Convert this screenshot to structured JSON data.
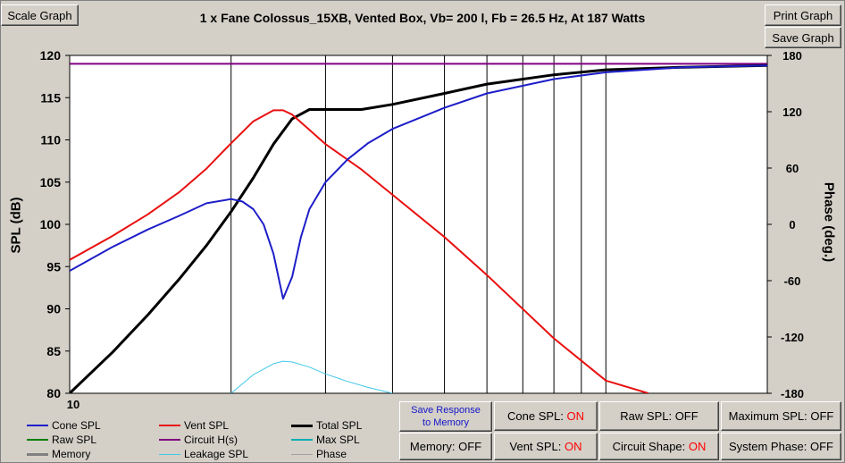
{
  "window": {
    "title": "1 x Fane Colossus_15XB,  Vented Box, Vb= 200 l,  Fb = 26.5 Hz,  At 187 Watts"
  },
  "buttons": {
    "scale_graph": "Scale Graph",
    "print_graph": "Print Graph",
    "save_graph": "Save Graph",
    "save_response_line1": "Save Response",
    "save_response_line2": "to Memory",
    "memory": "Memory: OFF",
    "cone_spl_label": "Cone SPL:",
    "cone_spl_state": "ON",
    "vent_spl_label": "Vent SPL:",
    "vent_spl_state": "ON",
    "raw_spl": "Raw SPL: OFF",
    "circuit_shape_label": "Circuit Shape:",
    "circuit_shape_state": "ON",
    "maximum_spl": "Maximum SPL: OFF",
    "system_phase": "System Phase: OFF"
  },
  "legend": {
    "cone_spl": "Cone SPL",
    "vent_spl": "Vent SPL",
    "total_spl": "Total SPL",
    "raw_spl": "Raw SPL",
    "circuit_hs": "Circuit H(s)",
    "max_spl": "Max SPL",
    "memory": "Memory",
    "leakage_spl": "Leakage SPL",
    "phase": "Phase"
  },
  "colors": {
    "cone": "#1e1ec8",
    "vent": "#e81010",
    "total": "#000000",
    "raw": "#008000",
    "circuit": "#800080",
    "max": "#00b0b0",
    "memory": "#808080",
    "leakage": "#40c8e8",
    "phase": "#a0a0a0"
  },
  "chart_data": {
    "type": "line",
    "title": "1 x Fane Colossus_15XB,  Vented Box, Vb= 200 l,  Fb = 26.5 Hz,  At 187 Watts",
    "xlabel": "",
    "ylabel": "SPL (dB)",
    "y2label": "Phase (deg.)",
    "x_scale": "log",
    "xlim": [
      10,
      200
    ],
    "ylim": [
      80,
      120
    ],
    "y2lim": [
      -180,
      180
    ],
    "x_tick_labels": [
      "10"
    ],
    "y_ticks": [
      80,
      85,
      90,
      95,
      100,
      105,
      110,
      115,
      120
    ],
    "y2_ticks": [
      -180,
      -120,
      -60,
      0,
      60,
      120,
      180
    ],
    "grid": true,
    "series": [
      {
        "name": "Circuit H(s)",
        "color": "#800080",
        "x": [
          10,
          200
        ],
        "y": [
          119,
          119
        ]
      },
      {
        "name": "Total SPL",
        "color": "#000000",
        "x": [
          10,
          12,
          14,
          16,
          18,
          20,
          22,
          24,
          26,
          28,
          30,
          35,
          40,
          50,
          60,
          80,
          100,
          140,
          200
        ],
        "y": [
          80,
          84.8,
          89.3,
          93.5,
          97.5,
          101.5,
          105.5,
          109.5,
          112.5,
          113.6,
          113.6,
          113.6,
          114.2,
          115.5,
          116.6,
          117.7,
          118.3,
          118.6,
          118.8
        ]
      },
      {
        "name": "Vent SPL",
        "color": "#e81010",
        "x": [
          10,
          12,
          14,
          16,
          18,
          20,
          22,
          24,
          25,
          26,
          28,
          30,
          35,
          40,
          50,
          60,
          80,
          100,
          120
        ],
        "y": [
          95.8,
          98.6,
          101.2,
          103.8,
          106.6,
          109.6,
          112.2,
          113.5,
          113.5,
          113,
          111.2,
          109.5,
          106.5,
          103.5,
          98.5,
          94,
          86.5,
          81.5,
          80
        ]
      },
      {
        "name": "Cone SPL",
        "color": "#1e1ec8",
        "x": [
          10,
          12,
          14,
          16,
          18,
          20,
          21,
          22,
          23,
          24,
          25,
          26,
          27,
          28,
          30,
          33,
          36,
          40,
          50,
          60,
          80,
          100,
          140,
          200
        ],
        "y": [
          94.5,
          97.3,
          99.4,
          101,
          102.5,
          103,
          102.7,
          101.8,
          100,
          96.5,
          91.2,
          93.8,
          98.5,
          101.8,
          105,
          107.7,
          109.6,
          111.3,
          113.8,
          115.5,
          117.2,
          118,
          118.6,
          118.8
        ]
      },
      {
        "name": "Leakage SPL",
        "color": "#40c8e8",
        "x": [
          20,
          22,
          24,
          25,
          26,
          28,
          30,
          33,
          36,
          40
        ],
        "y": [
          80,
          82.2,
          83.5,
          83.8,
          83.7,
          83.1,
          82.3,
          81.4,
          80.7,
          80
        ]
      }
    ]
  }
}
